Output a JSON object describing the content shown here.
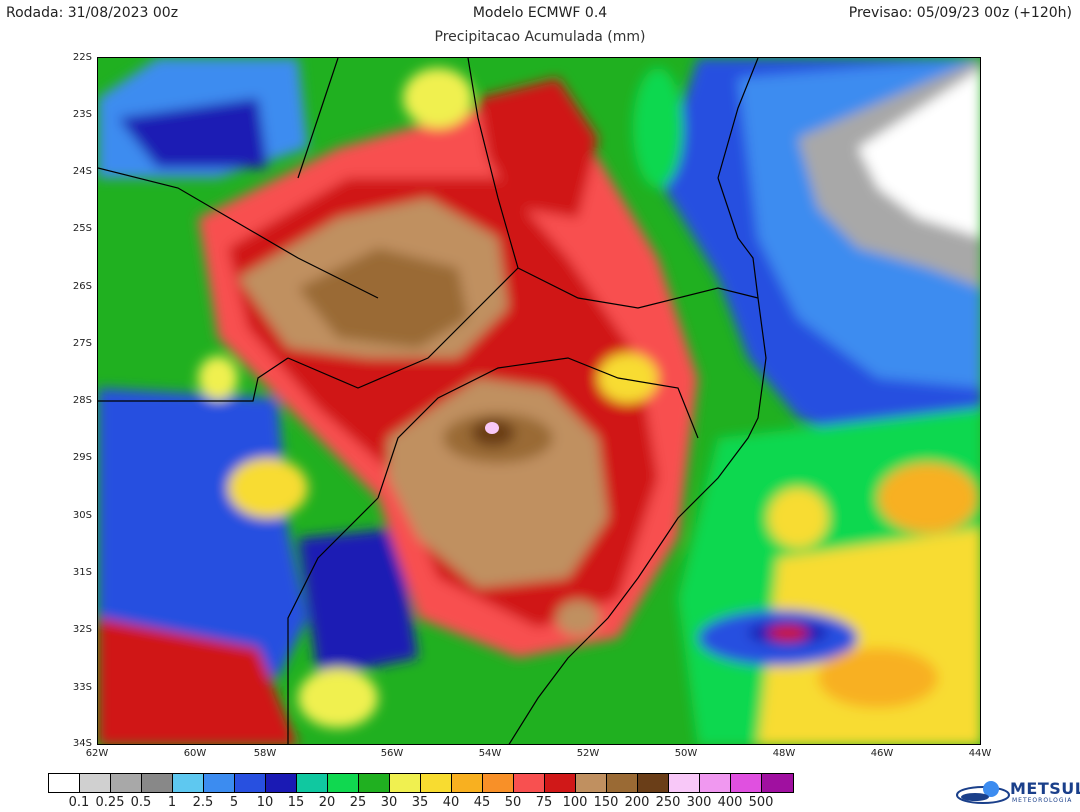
{
  "header": {
    "run": "Rodada: 31/08/2023 00z",
    "model": "Modelo ECMWF 0.4",
    "valid": "Previsao: 05/09/23 00z (+120h)",
    "subtitle": "Precipitacao Acumulada (mm)"
  },
  "axes": {
    "lat_ticks": [
      "22S",
      "23S",
      "24S",
      "25S",
      "26S",
      "27S",
      "28S",
      "29S",
      "30S",
      "31S",
      "32S",
      "33S",
      "34S"
    ],
    "lon_ticks": [
      "62W",
      "60W",
      "58W",
      "56W",
      "54W",
      "52W",
      "50W",
      "48W",
      "46W",
      "44W"
    ]
  },
  "legend": {
    "colors": [
      "#ffffff",
      "#d0d0d0",
      "#a8a8a8",
      "#888888",
      "#5ec8f0",
      "#3c8cf0",
      "#2850e0",
      "#1a1ab4",
      "#10c8a0",
      "#10d850",
      "#20b020",
      "#f0f050",
      "#f8dc30",
      "#f8b020",
      "#f89028",
      "#f85050",
      "#d01818",
      "#c09060",
      "#9a6a34",
      "#6a3e18",
      "#f8c8f8",
      "#f098f0",
      "#e050e0",
      "#a010a0"
    ],
    "labels": [
      "0.1",
      "0.25",
      "0.5",
      "1",
      "2.5",
      "5",
      "10",
      "15",
      "20",
      "25",
      "30",
      "35",
      "40",
      "45",
      "50",
      "75",
      "100",
      "150",
      "200",
      "250",
      "300",
      "400",
      "500"
    ]
  },
  "logo": {
    "name": "METSUL",
    "sub": "METEOROLOGIA"
  }
}
